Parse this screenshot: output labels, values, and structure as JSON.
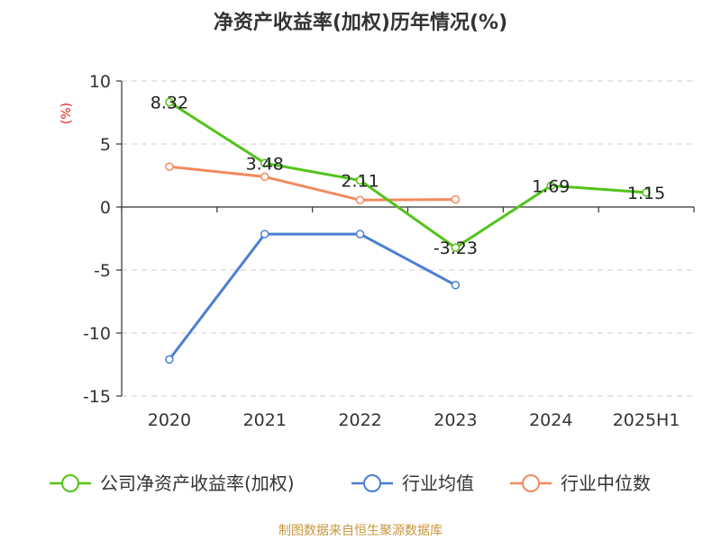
{
  "chart_data": {
    "type": "line",
    "title": "净资产收益率(加权)历年情况(%)",
    "ylabel": "(%)",
    "categories": [
      "2020",
      "2021",
      "2022",
      "2023",
      "2024",
      "2025H1"
    ],
    "ylim": [
      -15,
      10
    ],
    "yticks": [
      10,
      5,
      0,
      -5,
      -10,
      -15
    ],
    "ytick_labels": [
      "10",
      "5",
      "0",
      "-5",
      "-10",
      "-15"
    ],
    "grid": true,
    "legend_position": "bottom",
    "series": [
      {
        "name": "公司净资产收益率(加权)",
        "color": "#52c41a",
        "values": [
          8.32,
          3.48,
          2.11,
          -3.23,
          1.69,
          1.15
        ],
        "labels": [
          "8.32",
          "3.48",
          "2.11",
          "-3.23",
          "1.69",
          "1.15"
        ]
      },
      {
        "name": "行业均值",
        "color": "#4a7fd4",
        "values": [
          -12.1,
          -2.15,
          -2.15,
          -6.2,
          null,
          null
        ]
      },
      {
        "name": "行业中位数",
        "color": "#f4895f",
        "values": [
          3.2,
          2.4,
          0.55,
          0.6,
          null,
          null
        ]
      }
    ]
  },
  "source": {
    "text": "制图数据来自恒生聚源数据库",
    "color": "#c8963c"
  },
  "unit_color": "#e02020"
}
